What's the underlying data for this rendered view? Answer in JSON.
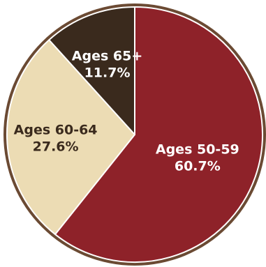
{
  "chart_data": {
    "type": "pie",
    "categories": [
      "Ages 50-59",
      "Ages 60-64",
      "Ages 65+"
    ],
    "values": [
      60.7,
      27.6,
      11.7
    ],
    "value_labels": [
      "60.7%",
      "27.6%",
      "11.7%"
    ],
    "colors": [
      "#8e2229",
      "#ecdcb4",
      "#3a2a1d"
    ],
    "label_colors": [
      "#ffffff",
      "#3a2a1d",
      "#ffffff"
    ],
    "border_color": "#6b4a33",
    "separator_color": "#ffffff",
    "start_angle_deg": 0,
    "direction": "clockwise",
    "title": "",
    "legend": "none"
  }
}
